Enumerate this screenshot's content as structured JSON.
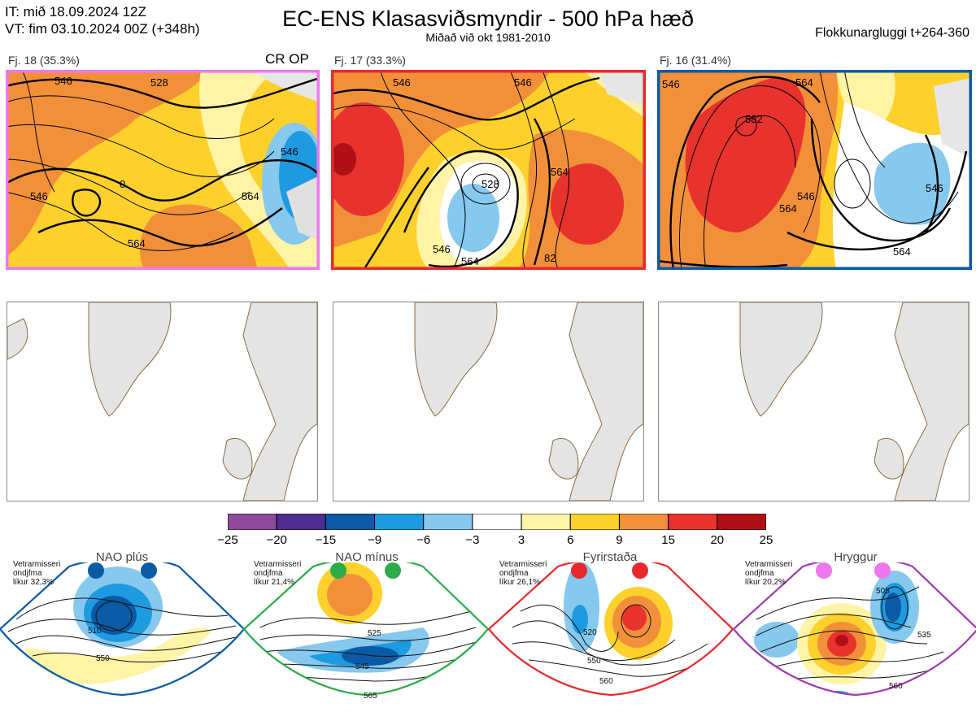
{
  "header": {
    "it": "IT: mið 18.09.2024 12Z",
    "vt": "VT: fim 03.10.2024 00Z  (+348h)",
    "title": "EC-ENS Klasasviðsmyndir - 500 hPa hæð",
    "subtitle": "Miðað við okt 1981-2010",
    "window": "Flokkunargluggi t+264-360"
  },
  "clusters": [
    {
      "label": "Fj. 18 (35.3%)",
      "tag": "CR OP",
      "border": "#ee77ee",
      "contours": [
        "546",
        "528",
        "546",
        "564",
        "564",
        "546",
        "0"
      ]
    },
    {
      "label": "Fj. 17 (33.3%)",
      "tag": "",
      "border": "#e8282d",
      "contours": [
        "546",
        "528",
        "546",
        "564",
        "564",
        "546",
        "82"
      ]
    },
    {
      "label": "Fj. 16 (31.4%)",
      "tag": "",
      "border": "#0b5aa5",
      "contours": [
        "546",
        "564",
        "582",
        "564",
        "546",
        "546",
        "564"
      ]
    }
  ],
  "colorbar": {
    "colors": [
      "#8e4a9a",
      "#4b2d93",
      "#0b5aa5",
      "#1e9be0",
      "#86c8ee",
      "#ffffff",
      "#fff3a6",
      "#fdd02c",
      "#f2903a",
      "#e8322d",
      "#ae1016"
    ],
    "labels": [
      "−25",
      "−20",
      "−15",
      "−9",
      "−6",
      "−3",
      "3",
      "6",
      "9",
      "15",
      "20",
      "25"
    ]
  },
  "regimes": [
    {
      "name": "NAO plús",
      "note": [
        "Vetrarmisseri",
        "ondjfma",
        "líkur 32,3%"
      ],
      "color": "#0b5aa5",
      "contours": [
        "510",
        "550"
      ]
    },
    {
      "name": "NAO mínus",
      "note": [
        "Vetrarmisseri",
        "ondjfma",
        "líkur 21,4%"
      ],
      "color": "#2bab4a",
      "contours": [
        "525",
        "545",
        "565"
      ]
    },
    {
      "name": "Fyrirstaða",
      "note": [
        "Vetrarmisseri",
        "ondjfma",
        "líkur 26,1%"
      ],
      "color": "#e8282d",
      "contours": [
        "520",
        "550",
        "560"
      ]
    },
    {
      "name": "Hryggur",
      "note": [
        "Vetrarmisseri",
        "ondjfma",
        "líkur 20,2%"
      ],
      "color": "#a03ab0",
      "contours": [
        "505",
        "535",
        "560"
      ]
    }
  ]
}
